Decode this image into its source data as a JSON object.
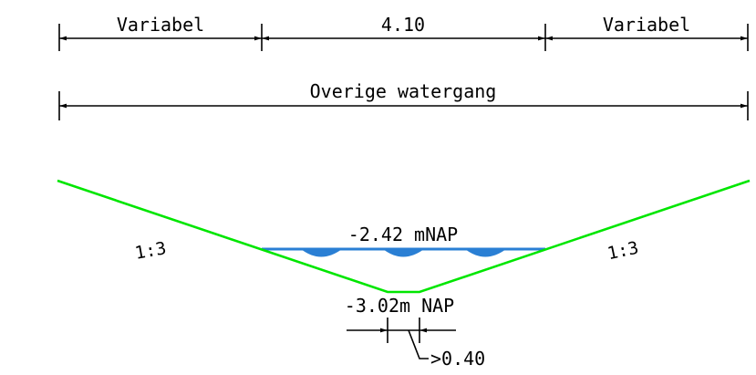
{
  "dimensions": {
    "top_left_label": "Variabel",
    "top_middle_label": "4.10",
    "top_right_label": "Variabel",
    "overall_label": "Overige watergang"
  },
  "cross_section": {
    "left_slope_label": "1:3",
    "right_slope_label": "1:3",
    "water_level_label": "-2.42 mNAP",
    "bottom_level_label": "-3.02m NAP",
    "bottom_width_label": ">0.40",
    "colors": {
      "profile": "#00e600",
      "water": "#2a7fd4",
      "dimension": "#000000"
    }
  }
}
